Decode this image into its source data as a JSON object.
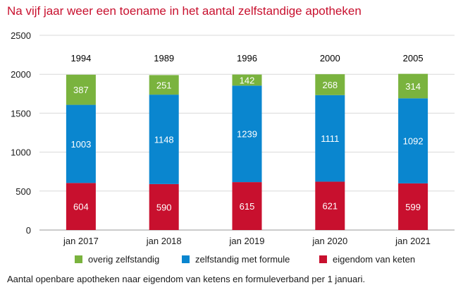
{
  "chart_data": {
    "type": "bar",
    "stacked": true,
    "title": "Na vijf jaar weer een toename in het aantal zelfstandige apotheken",
    "caption": "Aantal openbare apotheken naar eigendom van ketens en formuleverband per 1 januari.",
    "categories": [
      "jan 2017",
      "jan 2018",
      "jan 2019",
      "jan 2020",
      "jan 2021"
    ],
    "totals": [
      "1994",
      "1989",
      "1996",
      "2000",
      "2005"
    ],
    "series": [
      {
        "name": "eigendom van keten",
        "color": "#c8102e",
        "values": [
          604,
          590,
          615,
          621,
          599
        ]
      },
      {
        "name": "zelfstandig met formule",
        "color": "#0a86cf",
        "values": [
          1003,
          1148,
          1239,
          1111,
          1092
        ]
      },
      {
        "name": "overig zelfstandig",
        "color": "#7ab33e",
        "values": [
          387,
          251,
          142,
          268,
          314
        ]
      }
    ],
    "legend_order": [
      "overig zelfstandig",
      "zelfstandig met formule",
      "eigendom van keten"
    ],
    "ylim": [
      0,
      2500
    ],
    "yticks": [
      0,
      500,
      1000,
      1500,
      2000,
      2500
    ],
    "grid": true,
    "legend_position": "bottom"
  }
}
